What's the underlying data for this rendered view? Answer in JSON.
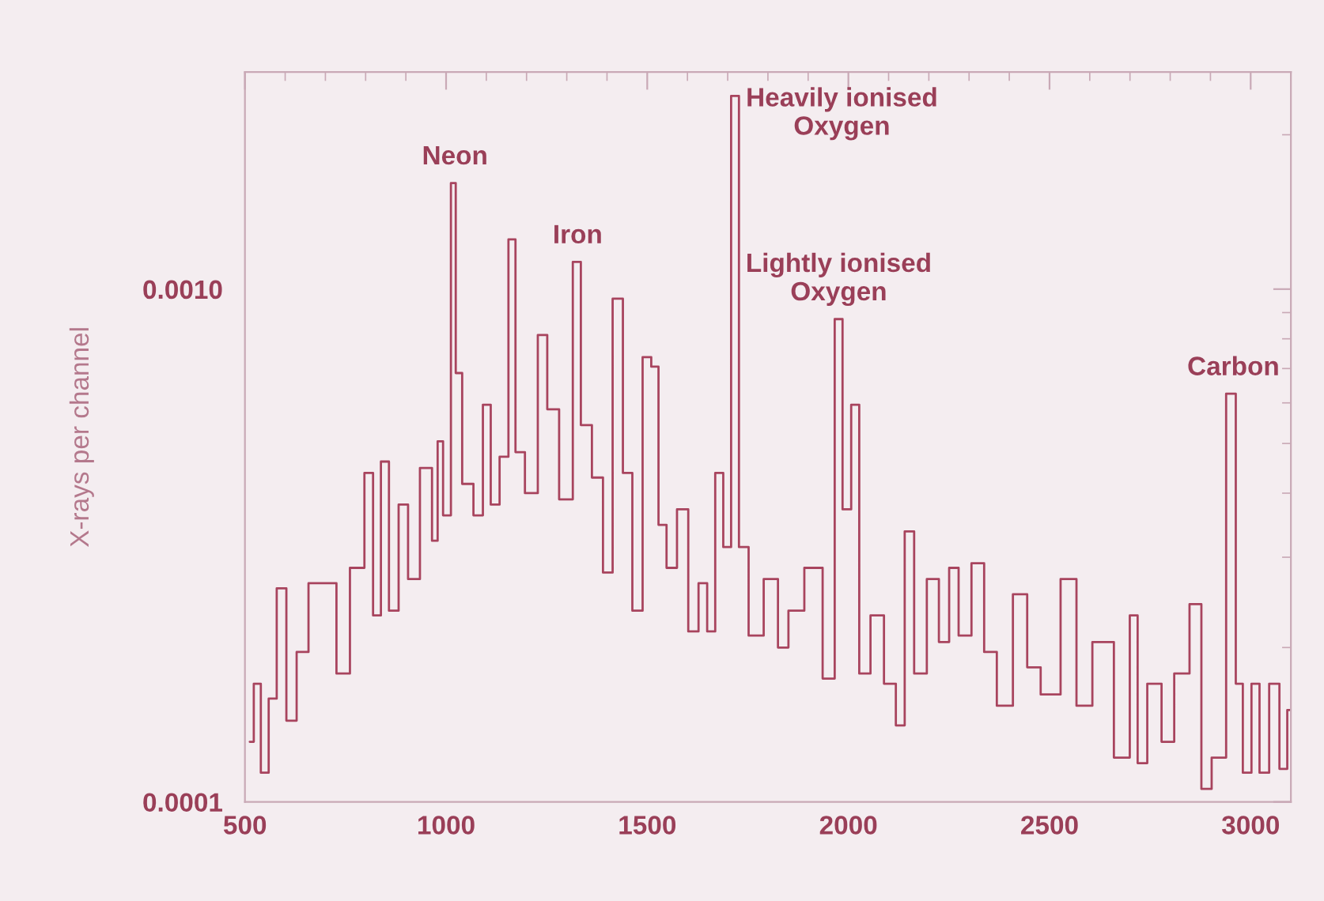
{
  "chart_data": {
    "type": "step",
    "ylabel": "X-rays per channel",
    "log": "y",
    "grid": false,
    "xlim": [
      500,
      3100
    ],
    "xticks": [
      500,
      1000,
      1500,
      2000,
      2500,
      3000
    ],
    "ylim": [
      0.0001,
      0.00265
    ],
    "yticks": [
      {
        "value": 0.001,
        "label": "0.0010"
      },
      {
        "value": 0.0001,
        "label": "0.0001"
      }
    ],
    "series": [
      {
        "color": "#a8445e",
        "x": [
          512,
          532,
          547,
          571,
          587,
          619,
          638,
          678,
          718,
          737,
          785,
          809,
          828,
          848,
          868,
          896,
          915,
          955,
          975,
          983,
          1002,
          1022,
          1026,
          1054,
          1082,
          1101,
          1121,
          1145,
          1165,
          1180,
          1212,
          1244,
          1259,
          1303,
          1327,
          1343,
          1382,
          1398,
          1430,
          1449,
          1477,
          1500,
          1520,
          1536,
          1560,
          1588,
          1616,
          1639,
          1659,
          1679,
          1699,
          1718,
          1738,
          1766,
          1813,
          1837,
          1865,
          1916,
          1956,
          1976,
          1995,
          2019,
          2035,
          2075,
          2102,
          2134,
          2146,
          2181,
          2209,
          2241,
          2260,
          2288,
          2324,
          2351,
          2387,
          2431,
          2458,
          2498,
          2557,
          2577,
          2636,
          2684,
          2715,
          2723,
          2763,
          2794,
          2826,
          2870,
          2885,
          2921,
          2957,
          2969,
          2992,
          3012,
          3032,
          3060,
          3083,
          3099
        ],
        "values": [
          0.000131,
          0.00017,
          0.000114,
          0.000159,
          0.000261,
          0.000144,
          0.000196,
          0.000267,
          0.000267,
          0.000178,
          0.000286,
          0.000438,
          0.000231,
          0.000461,
          0.000236,
          0.00038,
          0.000272,
          0.000448,
          0.000323,
          0.000505,
          0.000362,
          0.00161,
          0.000686,
          0.000417,
          0.000362,
          0.000595,
          0.00038,
          0.000471,
          0.00125,
          0.000481,
          0.0004,
          0.000814,
          0.000583,
          0.000389,
          0.00113,
          0.000543,
          0.000429,
          0.00028,
          0.000958,
          0.000438,
          0.000236,
          0.000737,
          0.000706,
          0.000347,
          0.000286,
          0.000372,
          0.000215,
          0.000267,
          0.000215,
          0.000438,
          0.000314,
          0.00238,
          0.000314,
          0.000211,
          0.000272,
          0.0002,
          0.000236,
          0.000286,
          0.000174,
          0.000874,
          0.000372,
          0.000595,
          0.000178,
          0.000231,
          0.00017,
          0.000141,
          0.000337,
          0.000178,
          0.000272,
          0.000205,
          0.000286,
          0.000211,
          0.000292,
          0.000196,
          0.000154,
          0.000254,
          0.000183,
          0.000162,
          0.000272,
          0.000154,
          0.000205,
          0.000122,
          0.000231,
          0.000119,
          0.00017,
          0.000131,
          0.000178,
          0.000243,
          0.000106,
          0.000122,
          0.000625,
          0.00017,
          0.000114,
          0.00017,
          0.000114,
          0.00017,
          0.000116,
          0.000151
        ]
      }
    ],
    "annotations": [
      {
        "text": "Neon",
        "x": 1022,
        "y": 0.00161
      },
      {
        "text": "Iron",
        "x": 1327,
        "y": 0.00113
      },
      {
        "text": "Heavily ionised\nOxygen",
        "x": 1718,
        "y": 0.00238
      },
      {
        "text": "Lightly ionised\nOxygen",
        "x": 1976,
        "y": 0.000874
      },
      {
        "text": "Carbon",
        "x": 2957,
        "y": 0.000625
      }
    ]
  }
}
